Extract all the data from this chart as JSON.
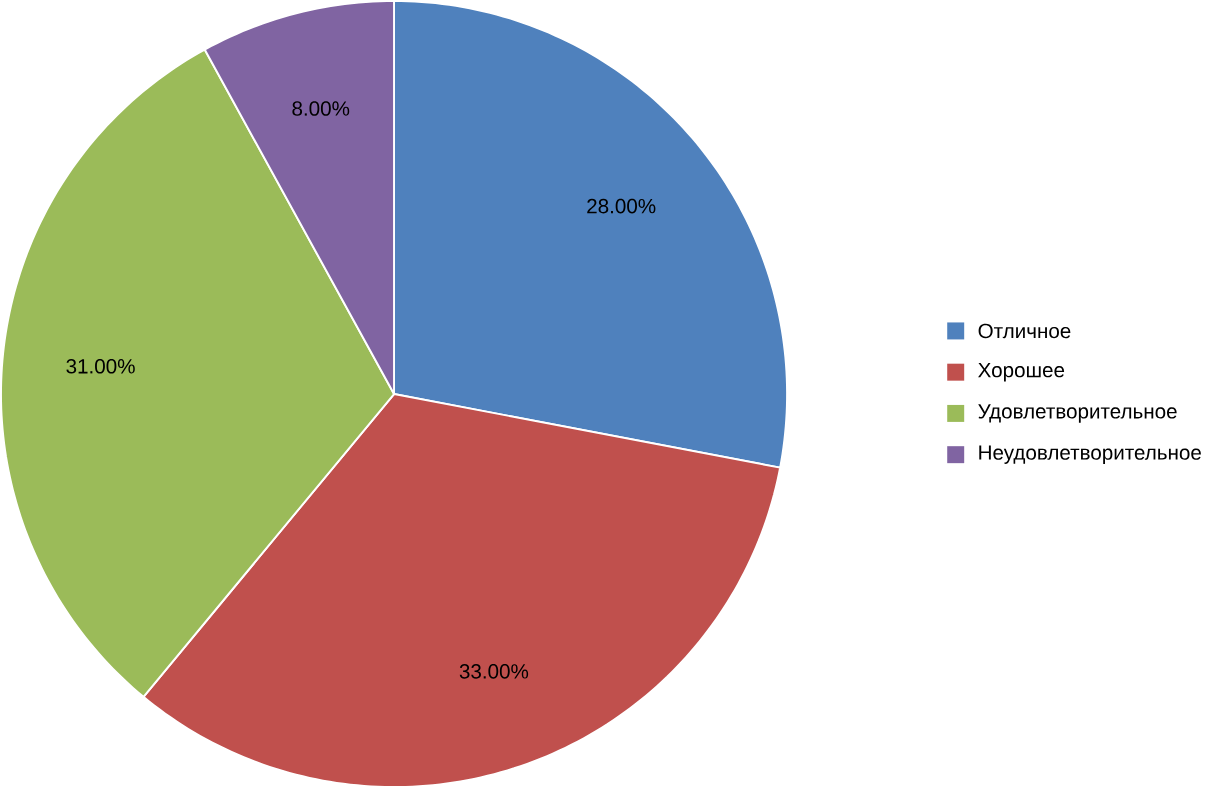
{
  "chart_data": {
    "type": "pie",
    "categories": [
      "Отличное",
      "Хорошее",
      "Удовлетворительное",
      "Неудовлетворительное"
    ],
    "values": [
      28,
      33,
      31,
      8
    ],
    "value_labels": [
      "28.00%",
      "33.00%",
      "31.00%",
      "8.00%"
    ],
    "colors": [
      "#4f81bd",
      "#c0504d",
      "#9bbb59",
      "#8064a2"
    ],
    "legend": "right"
  }
}
